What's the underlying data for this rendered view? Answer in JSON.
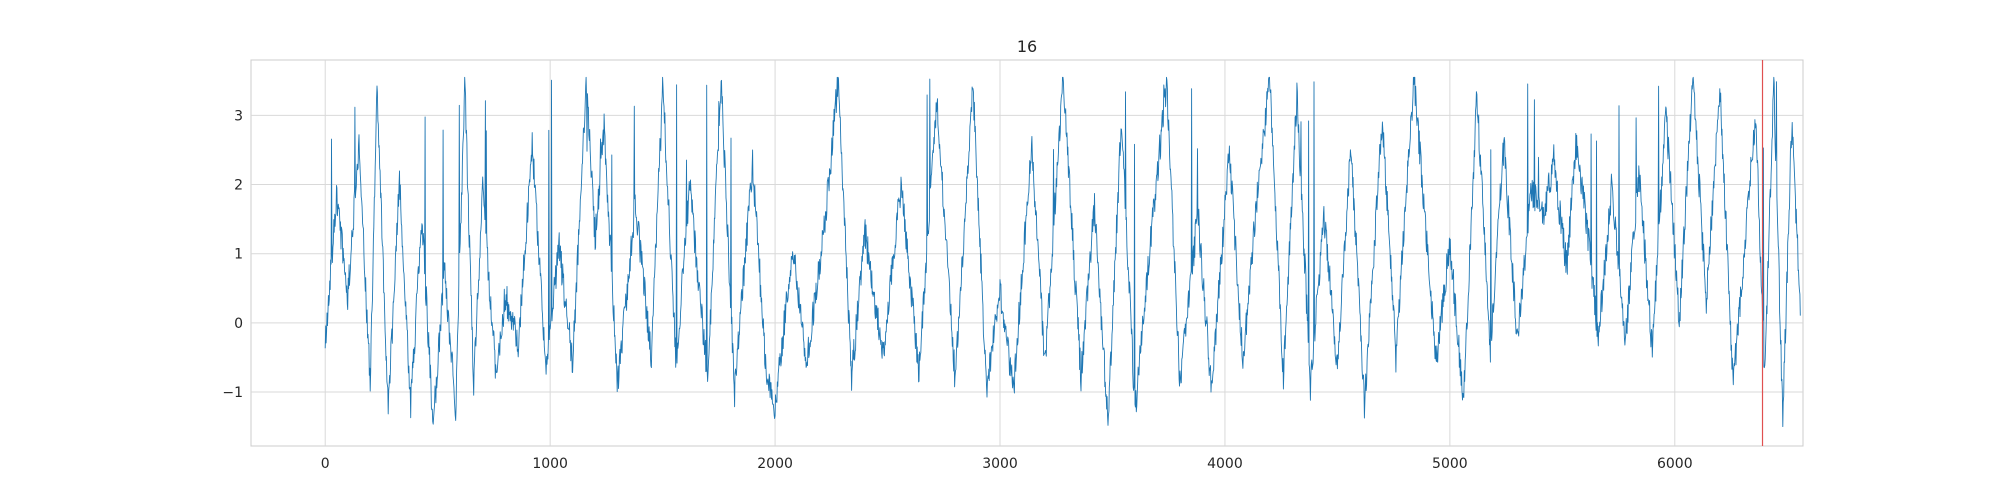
{
  "chart_data": {
    "type": "line",
    "title": "16",
    "xlabel": "",
    "ylabel": "",
    "xlim": [
      -330,
      6570
    ],
    "ylim": [
      -1.78,
      3.8
    ],
    "x_ticks": [
      0,
      1000,
      2000,
      3000,
      4000,
      5000,
      6000
    ],
    "x_tick_labels": [
      "0",
      "1000",
      "2000",
      "3000",
      "4000",
      "5000",
      "6000"
    ],
    "y_ticks": [
      -1,
      0,
      1,
      2,
      3
    ],
    "y_tick_labels": [
      "−1",
      "0",
      "1",
      "2",
      "3"
    ],
    "grid": true,
    "series_color": "#1f77b4",
    "marker_color": "#e05050",
    "vertical_marker_x": 6390,
    "n_points": 6560,
    "y_range": [
      -1.5,
      3.55
    ],
    "series": [
      {
        "x": [
          0,
          50,
          100,
          150,
          200,
          230,
          280,
          330,
          380,
          430,
          480,
          530,
          580,
          620,
          660,
          700,
          760,
          800,
          860,
          920,
          980,
          1040,
          1100,
          1160,
          1200,
          1240,
          1300,
          1380,
          1450,
          1500,
          1560,
          1620,
          1700,
          1760,
          1820,
          1900,
          1960,
          2000,
          2080,
          2140,
          2220,
          2280,
          2340,
          2400,
          2480,
          2560,
          2640,
          2720,
          2800,
          2880,
          2940,
          3000,
          3060,
          3140,
          3200,
          3280,
          3360,
          3420,
          3480,
          3540,
          3600,
          3660,
          3740,
          3800,
          3880,
          3940,
          4020,
          4080,
          4140,
          4200,
          4260,
          4320,
          4380,
          4440,
          4500,
          4560,
          4620,
          4700,
          4760,
          4840,
          4880,
          4940,
          5000,
          5060,
          5120,
          5180,
          5240,
          5300,
          5360,
          5420,
          5460,
          5520,
          5560,
          5600,
          5660,
          5720,
          5780,
          5840,
          5900,
          5960,
          6020,
          6080,
          6140,
          6200,
          6260,
          6320,
          6360,
          6400,
          6440,
          6480,
          6520,
          6560
        ],
        "y": [
          -0.25,
          1.8,
          0.4,
          2.6,
          -0.9,
          3.5,
          -1.3,
          2.1,
          -1.2,
          1.5,
          -1.5,
          0.8,
          -1.25,
          3.5,
          -0.9,
          1.9,
          -0.8,
          0.4,
          -0.3,
          2.6,
          -0.7,
          1.1,
          -0.6,
          3.5,
          1.2,
          2.8,
          -0.9,
          1.7,
          -0.5,
          3.5,
          -0.6,
          2.0,
          -0.8,
          3.5,
          -1.0,
          2.3,
          -0.7,
          -1.2,
          1.1,
          -0.6,
          1.4,
          3.5,
          -0.8,
          1.3,
          -0.5,
          2.0,
          -0.7,
          3.2,
          -0.8,
          3.45,
          -1.0,
          0.5,
          -1.0,
          2.6,
          -0.6,
          3.55,
          -0.8,
          1.7,
          -1.45,
          3.0,
          -1.3,
          0.9,
          3.45,
          -0.9,
          1.6,
          -1.0,
          2.5,
          -0.6,
          1.7,
          3.55,
          -0.8,
          3.3,
          -0.9,
          1.6,
          -0.7,
          2.6,
          -1.2,
          3.0,
          -0.5,
          3.55,
          1.9,
          -0.6,
          1.2,
          -1.2,
          3.3,
          -0.4,
          2.6,
          -0.3,
          1.9,
          1.6,
          2.3,
          0.8,
          2.6,
          1.7,
          -0.2,
          2.0,
          -0.3,
          2.2,
          -0.4,
          3.1,
          0.0,
          3.55,
          0.3,
          3.4,
          -0.9,
          1.5,
          3.0,
          -0.8,
          3.55,
          -1.35,
          2.9,
          0.1
        ]
      }
    ]
  }
}
